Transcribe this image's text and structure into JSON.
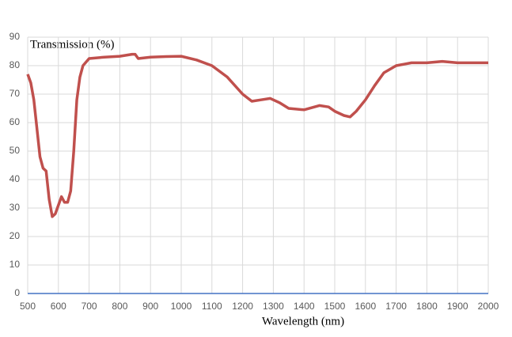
{
  "chart_data": {
    "type": "line",
    "title": "Transmission (%)",
    "x_label": "Wavelength (nm)",
    "x": [
      500,
      510,
      520,
      530,
      540,
      550,
      560,
      570,
      580,
      590,
      600,
      610,
      620,
      630,
      640,
      650,
      660,
      670,
      680,
      700,
      750,
      800,
      840,
      850,
      860,
      900,
      950,
      1000,
      1050,
      1100,
      1150,
      1200,
      1230,
      1260,
      1290,
      1320,
      1350,
      1400,
      1450,
      1480,
      1500,
      1530,
      1550,
      1570,
      1600,
      1630,
      1660,
      1700,
      1750,
      1800,
      1850,
      1900,
      1950,
      2000
    ],
    "series": [
      {
        "name": "Transmission",
        "color": "#c0504d",
        "values": [
          77,
          74,
          68,
          58,
          48,
          44,
          43,
          33,
          27,
          28,
          31,
          34,
          32,
          32,
          36,
          50,
          68,
          76,
          80,
          82.5,
          83,
          83.3,
          84,
          84,
          82.5,
          83,
          83.2,
          83.3,
          82,
          80,
          76,
          70,
          67.5,
          68,
          68.5,
          67,
          65,
          64.5,
          66,
          65.5,
          64,
          62.5,
          62,
          64,
          68,
          73,
          77.5,
          80,
          81,
          81,
          81.5,
          81,
          81,
          81
        ]
      }
    ],
    "xlim": [
      500,
      2000
    ],
    "xticks": [
      500,
      600,
      700,
      800,
      900,
      1000,
      1100,
      1200,
      1300,
      1400,
      1500,
      1600,
      1700,
      1800,
      1900,
      2000
    ],
    "ylim": [
      0,
      90
    ],
    "yticks": [
      0,
      10,
      20,
      30,
      40,
      50,
      60,
      70,
      80,
      90
    ],
    "grid": true,
    "axis_color": "#4472c4"
  }
}
